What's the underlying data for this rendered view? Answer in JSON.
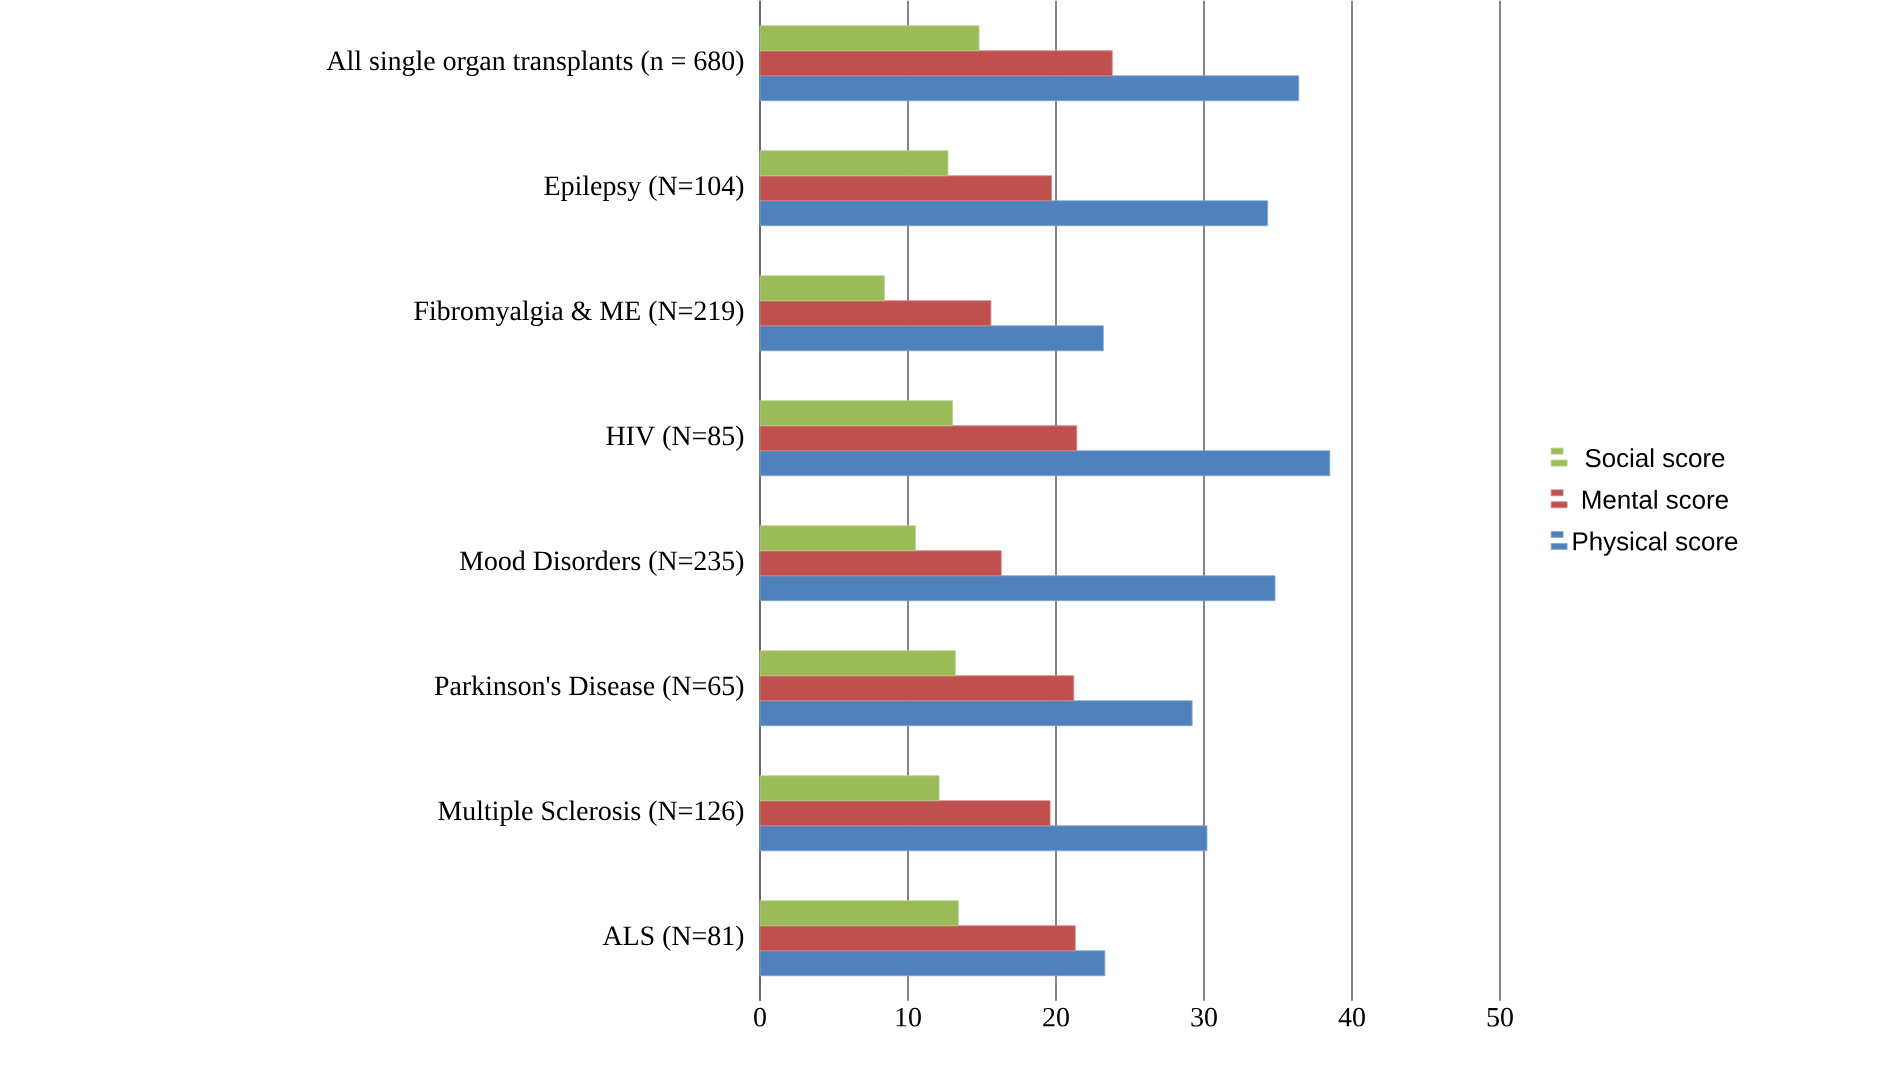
{
  "chart_data": {
    "type": "bar",
    "orientation": "horizontal",
    "categories": [
      "All single organ transplants (n = 680)",
      "Epilepsy (N=104)",
      "Fibromyalgia & ME (N=219)",
      "HIV (N=85)",
      "Mood Disorders (N=235)",
      "Parkinson's Disease (N=65)",
      "Multiple Sclerosis (N=126)",
      "ALS (N=81)"
    ],
    "series": [
      {
        "name": "Physical score",
        "color": "#4f81bd",
        "values": [
          36.4,
          34.3,
          23.2,
          38.5,
          34.8,
          29.2,
          30.2,
          23.3
        ]
      },
      {
        "name": "Mental score",
        "color": "#c0504d",
        "values": [
          23.8,
          19.7,
          15.6,
          21.4,
          16.3,
          21.2,
          19.6,
          21.3
        ]
      },
      {
        "name": "Social score",
        "color": "#9bbb59",
        "values": [
          14.8,
          12.7,
          8.4,
          13.0,
          10.5,
          13.2,
          12.1,
          13.4
        ]
      }
    ],
    "xlim": [
      0,
      50
    ],
    "xticks": [
      0,
      10,
      20,
      30,
      40,
      50
    ],
    "grid": "x",
    "legend": "right"
  }
}
